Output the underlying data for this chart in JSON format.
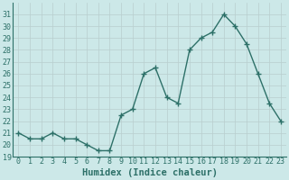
{
  "x": [
    0,
    1,
    2,
    3,
    4,
    5,
    6,
    7,
    8,
    9,
    10,
    11,
    12,
    13,
    14,
    15,
    16,
    17,
    18,
    19,
    20,
    21,
    22,
    23
  ],
  "y": [
    21,
    20.5,
    20.5,
    21,
    20.5,
    20.5,
    20,
    19.5,
    19.5,
    22.5,
    23,
    26,
    26.5,
    24,
    23.5,
    28,
    29,
    29.5,
    31,
    30,
    28.5,
    26,
    23.5,
    22
  ],
  "line_color": "#2d7068",
  "marker": "+",
  "marker_size": 4,
  "marker_lw": 1.0,
  "line_width": 1.0,
  "bg_color": "#cce8e8",
  "grid_color": "#b8cece",
  "xlabel": "Humidex (Indice chaleur)",
  "ylim": [
    19,
    32
  ],
  "xlim": [
    -0.5,
    23.5
  ],
  "yticks": [
    19,
    20,
    21,
    22,
    23,
    24,
    25,
    26,
    27,
    28,
    29,
    30,
    31
  ],
  "xticks": [
    0,
    1,
    2,
    3,
    4,
    5,
    6,
    7,
    8,
    9,
    10,
    11,
    12,
    13,
    14,
    15,
    16,
    17,
    18,
    19,
    20,
    21,
    22,
    23
  ],
  "font_color": "#2d7068",
  "tick_font_size": 6.0,
  "label_font_size": 7.5
}
